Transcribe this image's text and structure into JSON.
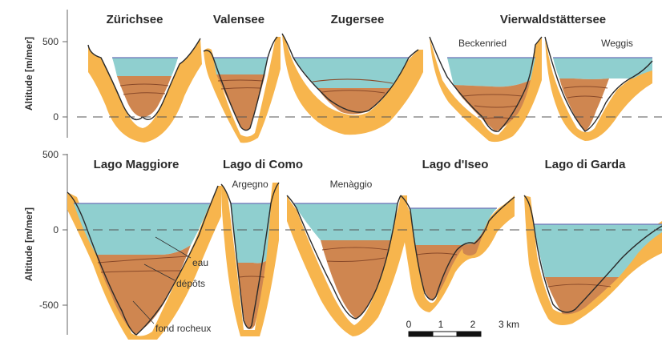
{
  "colors": {
    "rock": "#f7b54d",
    "sediment": "#cf8650",
    "water": "#8fcfcf",
    "outline": "#2a2a2a",
    "layer": "#8a4a2a",
    "surface": "#6a72b8"
  },
  "panels": [
    {
      "axis_label": "Altitude [m/mer]",
      "ticks": [
        {
          "label": "500"
        },
        {
          "label": "0"
        }
      ]
    },
    {
      "axis_label": "Altitude [m/mer]",
      "ticks": [
        {
          "label": "500"
        },
        {
          "label": "0"
        },
        {
          "label": "-500"
        }
      ]
    }
  ],
  "lakes": [
    {
      "name": "Zürichsee"
    },
    {
      "name": "Valensee"
    },
    {
      "name": "Zugersee"
    },
    {
      "name": "Vierwaldstättersee"
    },
    {
      "name": "Lago Maggiore"
    },
    {
      "name": "Lago di Como"
    },
    {
      "name": "Lago d'Iseo"
    },
    {
      "name": "Lago di Garda"
    }
  ],
  "sublabels": [
    "Beckenried",
    "Weggis",
    "Argegno",
    "Menàggio"
  ],
  "annotations": [
    "eau",
    "dépôts",
    "fond rocheux"
  ],
  "scale": {
    "labels": [
      "0",
      "1",
      "2",
      "3 km"
    ]
  }
}
